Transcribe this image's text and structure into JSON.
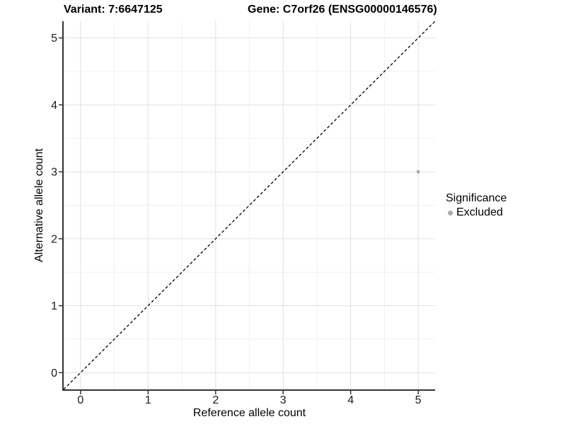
{
  "chart_data": {
    "type": "scatter",
    "titles": {
      "variant": "Variant: 7:6647125",
      "gene": "Gene: C7orf26 (ENSG00000146576)"
    },
    "xlabel": "Reference allele count",
    "ylabel": "Alternative allele count",
    "xlim": [
      -0.25,
      5.25
    ],
    "ylim": [
      -0.25,
      5.25
    ],
    "x_ticks": [
      0,
      1,
      2,
      3,
      4,
      5
    ],
    "y_ticks": [
      0,
      1,
      2,
      3,
      4,
      5
    ],
    "grid": "major+minor",
    "minor_grid_step": 0.5,
    "identity_line": {
      "equation": "y = x",
      "style": "dashed",
      "color": "#000000"
    },
    "series": [
      {
        "name": "Excluded",
        "color": "#ABABAB",
        "points": [
          {
            "x": 5,
            "y": 3
          }
        ]
      }
    ],
    "legend": {
      "title": "Significance",
      "position": "right",
      "items": [
        {
          "label": "Excluded",
          "color": "#ABABAB"
        }
      ]
    }
  },
  "colors": {
    "background": "#FFFFFF",
    "grid_major": "#E1E1E1",
    "grid_minor": "#F0F0F0",
    "axis_line": "#333333",
    "tick_mark": "#333333",
    "tick_label": "#1A1A1A",
    "point": "#ABABAB",
    "identity_line": "#000000"
  }
}
